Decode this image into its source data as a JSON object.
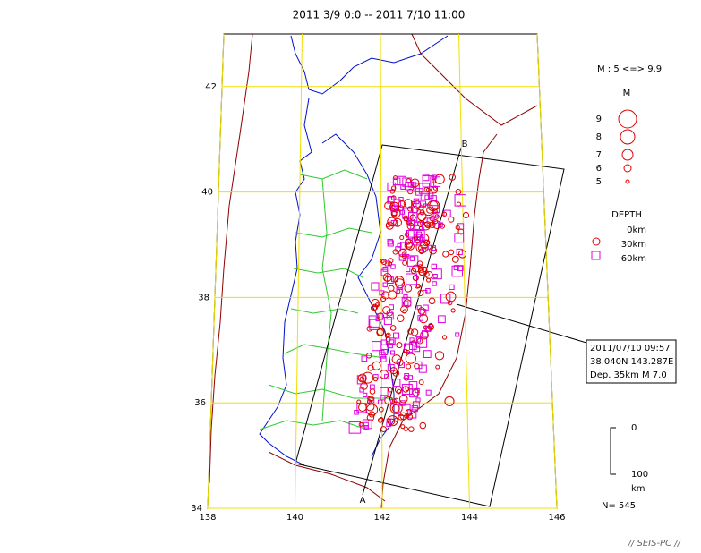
{
  "map": {
    "title": "2011 3/9 0:0 -- 2011 7/10 11:00",
    "lat_ticks": [
      34,
      36,
      38,
      40,
      42
    ],
    "lon_ticks": [
      138,
      140,
      142,
      144,
      146
    ],
    "legend": {
      "range": "M : 5 <=> 9.9",
      "magnitude_title": "M",
      "magnitudes": [
        9,
        8,
        7,
        6,
        5
      ],
      "depth_title": "DEPTH",
      "depths": [
        "0km",
        "30km",
        "60km"
      ]
    },
    "section": {
      "start": "A",
      "end": "B"
    },
    "annotation": [
      "2011/07/10 09:57",
      "38.040N  143.287E",
      "Dep. 35km   M 7.0"
    ],
    "scale": {
      "top": "0",
      "bottom": "100",
      "unit": "km"
    },
    "count": "N= 545",
    "footer": "// SEIS-PC //"
  }
}
